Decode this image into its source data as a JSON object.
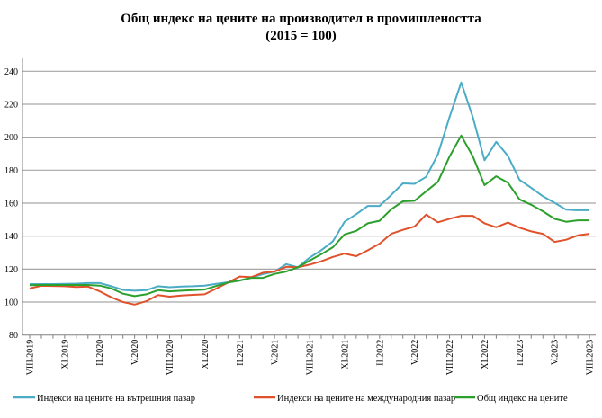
{
  "chart_data": {
    "type": "line",
    "title": "Общ индекс на цените на производител в промишлеността",
    "subtitle": "(2015 = 100)",
    "xlabel": "",
    "ylabel": "",
    "ylim": [
      80,
      240
    ],
    "yticks": [
      80,
      100,
      120,
      140,
      160,
      180,
      200,
      220,
      240
    ],
    "grid": true,
    "legend_position": "bottom",
    "x": [
      "VIII.2019",
      "IX.2019",
      "X.2019",
      "XI.2019",
      "XII.2019",
      "I.2020",
      "II.2020",
      "III.2020",
      "IV.2020",
      "V.2020",
      "VI.2020",
      "VII.2020",
      "VIII.2020",
      "IX.2020",
      "X.2020",
      "XI.2020",
      "XII.2020",
      "I.2021",
      "II.2021",
      "III.2021",
      "IV.2021",
      "V.2021",
      "VI.2021",
      "VII.2021",
      "VIII.2021",
      "IX.2021",
      "X.2021",
      "XI.2021",
      "XII.2021",
      "I.2022",
      "II.2022",
      "III.2022",
      "IV.2022",
      "V.2022",
      "VI.2022",
      "VII.2022",
      "VIII.2022",
      "IX.2022",
      "X.2022",
      "XI.2022",
      "XII.2022",
      "I.2023",
      "II.2023",
      "III.2023",
      "IV.2023",
      "V.2023",
      "VI.2023",
      "VII.2023",
      "VIII.2023"
    ],
    "x_tick_labels": [
      "VIII.2019",
      "XI.2019",
      "II.2020",
      "V.2020",
      "VIII.2020",
      "XI.2020",
      "II.2021",
      "V.2021",
      "VIII.2021",
      "XI.2021",
      "II.2022",
      "V.2022",
      "VIII.2022",
      "XI.2022",
      "II.2023",
      "V.2023",
      "VIII.2023"
    ],
    "series": [
      {
        "name": "Индекси на цените на вътрешния пазар",
        "color": "#4bacc6",
        "values": [
          110.9,
          110.9,
          110.9,
          111.1,
          111.2,
          111.5,
          111.5,
          109.6,
          107.4,
          106.9,
          107.2,
          109.6,
          109.0,
          109.4,
          109.6,
          110.0,
          111.1,
          112.0,
          113.0,
          114.8,
          117.0,
          118.5,
          123.0,
          121.1,
          126.9,
          131.4,
          136.9,
          148.7,
          153.3,
          158.3,
          158.3,
          165.0,
          172.0,
          171.7,
          176.0,
          189.6,
          212.3,
          233.2,
          212.0,
          186.0,
          197.2,
          188.7,
          174.2,
          169.3,
          164.2,
          160.2,
          156.0,
          155.7,
          155.7
        ]
      },
      {
        "name": "Индекси на цените на международния пазар",
        "color": "#e0522b",
        "values": [
          108.3,
          109.9,
          109.8,
          109.6,
          109.2,
          109.4,
          106.5,
          102.9,
          100.0,
          98.5,
          100.5,
          104.2,
          103.3,
          104.0,
          104.4,
          104.7,
          108.2,
          111.8,
          115.5,
          115.1,
          117.8,
          118.5,
          121.4,
          121.1,
          122.7,
          124.7,
          127.4,
          129.4,
          127.8,
          131.4,
          135.4,
          141.4,
          143.8,
          145.8,
          153.1,
          148.4,
          150.5,
          152.3,
          152.3,
          147.8,
          145.4,
          148.2,
          145.1,
          142.9,
          141.4,
          136.5,
          137.8,
          140.5,
          141.4
        ]
      },
      {
        "name": "Общ индекс на цените",
        "color": "#2ca02c",
        "values": [
          110.2,
          110.4,
          110.4,
          110.4,
          110.4,
          110.4,
          110.0,
          108.3,
          105.1,
          103.6,
          104.7,
          107.2,
          106.5,
          106.9,
          107.2,
          107.6,
          109.8,
          111.8,
          113.1,
          114.7,
          114.7,
          117.1,
          118.5,
          121.1,
          125.1,
          129.0,
          133.3,
          141.0,
          143.2,
          147.8,
          149.3,
          156.3,
          161.1,
          161.4,
          167.2,
          172.9,
          188.3,
          201.0,
          188.3,
          170.9,
          176.3,
          172.4,
          162.3,
          159.0,
          155.1,
          150.5,
          148.7,
          149.6,
          149.6
        ]
      }
    ]
  }
}
